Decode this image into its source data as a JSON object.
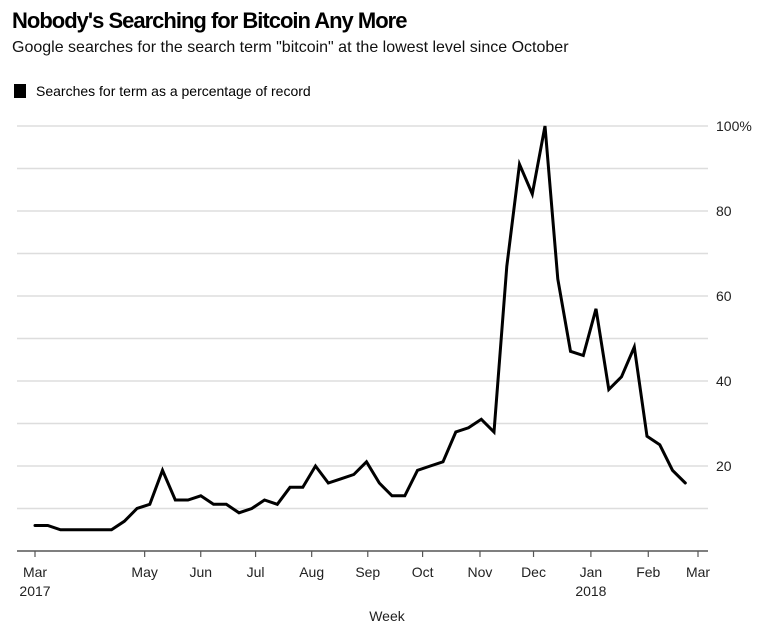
{
  "chart_data": {
    "type": "line",
    "title": "Nobody's Searching for Bitcoin Any More",
    "subtitle": "Google searches for the search term \"bitcoin\" at the lowest level since October",
    "xlabel": "Week",
    "ylabel": "",
    "ylim": [
      0,
      100
    ],
    "grid": true,
    "legend_position": "top-left",
    "y_ticks": [
      {
        "value": 100,
        "label": "100%"
      },
      {
        "value": 80,
        "label": "80"
      },
      {
        "value": 60,
        "label": "60"
      },
      {
        "value": 40,
        "label": "40"
      },
      {
        "value": 20,
        "label": "20"
      }
    ],
    "y_gridlines": [
      10,
      20,
      30,
      40,
      50,
      60,
      70,
      80,
      90,
      100
    ],
    "x_ticks": [
      {
        "week": 0,
        "label": "Mar",
        "sublabel": "2017"
      },
      {
        "week": 8.6,
        "label": "May",
        "sublabel": ""
      },
      {
        "week": 13,
        "label": "Jun",
        "sublabel": ""
      },
      {
        "week": 17.3,
        "label": "Jul",
        "sublabel": ""
      },
      {
        "week": 21.7,
        "label": "Aug",
        "sublabel": ""
      },
      {
        "week": 26.1,
        "label": "Sep",
        "sublabel": ""
      },
      {
        "week": 30.4,
        "label": "Oct",
        "sublabel": ""
      },
      {
        "week": 34.9,
        "label": "Nov",
        "sublabel": ""
      },
      {
        "week": 39.1,
        "label": "Dec",
        "sublabel": ""
      },
      {
        "week": 43.6,
        "label": "Jan",
        "sublabel": "2018"
      },
      {
        "week": 48.1,
        "label": "Feb",
        "sublabel": ""
      },
      {
        "week": 52,
        "label": "Mar",
        "sublabel": ""
      }
    ],
    "x_range": [
      -1,
      53.5
    ],
    "series": [
      {
        "name": "Searches for term as a percentage of record",
        "color": "#000000",
        "values": [
          6,
          6,
          5,
          5,
          5,
          5,
          5,
          7,
          10,
          11,
          19,
          12,
          12,
          13,
          11,
          11,
          9,
          10,
          12,
          11,
          15,
          15,
          20,
          16,
          17,
          18,
          21,
          16,
          13,
          13,
          19,
          20,
          21,
          28,
          29,
          31,
          28,
          67,
          91,
          84,
          100,
          64,
          47,
          46,
          57,
          38,
          41,
          48,
          27,
          25,
          19,
          16
        ]
      }
    ]
  }
}
